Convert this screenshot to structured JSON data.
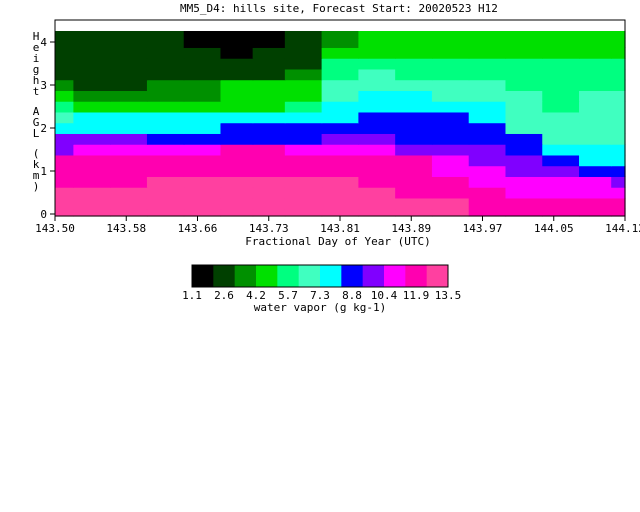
{
  "chart_data": {
    "type": "heatmap",
    "title": "MM5_D4: hills site,  Forecast Start: 20020523 H12",
    "xlabel": "Fractional Day of Year (UTC)",
    "ylabel": "Height AGL (km)",
    "xlim": [
      143.5,
      144.12
    ],
    "ylim": [
      0,
      4.2
    ],
    "x_ticks": [
      "143.50",
      "143.58",
      "143.66",
      "143.73",
      "143.81",
      "143.89",
      "143.97",
      "144.05",
      "144.12"
    ],
    "y_ticks": [
      "0",
      "1",
      "2",
      "3",
      "4"
    ],
    "grid": false,
    "colorbar": {
      "label": "water vapor (g kg-1)",
      "tick_labels": [
        "1.1",
        "2.6",
        "4.2",
        "5.7",
        "7.3",
        "8.8",
        "10.4",
        "11.9",
        "13.5"
      ],
      "levels": [
        1.1,
        1.9,
        2.6,
        3.4,
        4.2,
        5.0,
        5.7,
        6.5,
        7.3,
        8.1,
        8.8,
        9.6,
        10.4,
        11.2,
        11.9,
        12.7,
        13.5
      ],
      "colors": [
        "#000000",
        "#004000",
        "#009000",
        "#00e000",
        "#00ff80",
        "#40ffc0",
        "#00ffff",
        "#0000ff",
        "#8000ff",
        "#ff00ff",
        "#ff00b0",
        "#ff40a0"
      ]
    },
    "x": [
      143.5,
      143.54,
      143.58,
      143.62,
      143.66,
      143.7,
      143.73,
      143.77,
      143.81,
      143.85,
      143.89,
      143.93,
      143.97,
      144.01,
      144.05,
      144.09,
      144.12
    ],
    "y": [
      0,
      0.25,
      0.5,
      0.75,
      1.0,
      1.25,
      1.5,
      1.75,
      2.0,
      2.25,
      2.5,
      2.75,
      3.0,
      3.25,
      3.5,
      3.75,
      4.0,
      4.2
    ],
    "z": [
      [
        13.0,
        13.0,
        13.0,
        13.0,
        13.0,
        13.0,
        13.0,
        13.2,
        13.2,
        12.5,
        12.5,
        12.5,
        12.0,
        11.5,
        11.5,
        11.5,
        11.5
      ],
      [
        12.5,
        12.5,
        12.5,
        13.0,
        13.0,
        13.0,
        13.0,
        13.2,
        13.2,
        12.5,
        12.5,
        12.5,
        12.0,
        11.5,
        11.5,
        11.5,
        11.5
      ],
      [
        12.5,
        12.5,
        12.5,
        12.5,
        12.5,
        13.0,
        13.0,
        13.2,
        13.2,
        12.5,
        12.0,
        12.0,
        11.5,
        10.5,
        11.0,
        11.0,
        11.0
      ],
      [
        12.0,
        12.0,
        12.0,
        12.5,
        12.5,
        12.5,
        12.5,
        12.5,
        12.5,
        12.0,
        12.0,
        11.5,
        11.0,
        10.5,
        10.5,
        10.5,
        10.0
      ],
      [
        12.0,
        12.0,
        12.0,
        12.0,
        12.0,
        12.0,
        12.0,
        12.0,
        12.0,
        11.5,
        12.0,
        11.0,
        10.5,
        10.0,
        9.5,
        9.0,
        8.5
      ],
      [
        11.5,
        12.0,
        12.0,
        12.0,
        12.0,
        12.0,
        12.0,
        12.0,
        12.0,
        11.5,
        11.5,
        10.5,
        10.0,
        9.5,
        8.5,
        7.5,
        7.5
      ],
      [
        10.0,
        11.0,
        11.0,
        11.0,
        11.0,
        11.5,
        11.5,
        11.0,
        11.0,
        10.5,
        10.0,
        9.5,
        9.5,
        9.0,
        7.5,
        7.5,
        7.5
      ],
      [
        9.5,
        9.5,
        9.5,
        9.0,
        9.0,
        9.0,
        9.0,
        9.0,
        9.5,
        9.5,
        9.0,
        9.0,
        9.0,
        8.5,
        7.0,
        7.0,
        7.0
      ],
      [
        8.0,
        8.0,
        8.0,
        8.0,
        8.0,
        8.5,
        8.5,
        8.5,
        8.5,
        9.0,
        9.0,
        8.5,
        8.5,
        7.0,
        6.5,
        6.5,
        6.5
      ],
      [
        6.5,
        7.5,
        7.5,
        7.5,
        7.5,
        7.5,
        7.5,
        7.5,
        8.0,
        8.5,
        8.5,
        8.5,
        8.0,
        6.5,
        6.5,
        6.5,
        6.5
      ],
      [
        6.0,
        5.0,
        5.0,
        5.0,
        5.0,
        5.0,
        5.0,
        6.0,
        7.5,
        8.0,
        8.0,
        8.0,
        7.5,
        6.5,
        6.0,
        6.5,
        6.5
      ],
      [
        4.5,
        4.0,
        4.0,
        4.0,
        4.0,
        4.5,
        4.5,
        5.0,
        7.0,
        7.5,
        7.5,
        7.0,
        7.0,
        6.5,
        6.0,
        6.5,
        6.5
      ],
      [
        3.5,
        3.0,
        3.0,
        3.5,
        4.0,
        4.5,
        4.5,
        4.5,
        6.5,
        7.0,
        7.0,
        6.5,
        6.5,
        6.0,
        6.0,
        6.0,
        6.0
      ],
      [
        3.0,
        3.0,
        3.0,
        3.0,
        3.0,
        3.0,
        3.0,
        4.0,
        6.0,
        6.5,
        6.0,
        6.0,
        6.0,
        6.0,
        6.0,
        6.0,
        6.0
      ],
      [
        3.0,
        3.0,
        3.0,
        3.0,
        3.0,
        3.0,
        3.0,
        3.0,
        5.5,
        6.0,
        5.5,
        5.5,
        5.5,
        5.5,
        5.5,
        5.5,
        5.5
      ],
      [
        3.0,
        3.0,
        3.0,
        3.0,
        3.0,
        2.0,
        2.5,
        3.0,
        4.5,
        5.0,
        5.0,
        5.0,
        5.0,
        5.0,
        5.0,
        5.0,
        5.0
      ],
      [
        3.0,
        3.0,
        3.0,
        3.0,
        1.5,
        1.2,
        1.5,
        3.0,
        4.0,
        4.5,
        4.5,
        4.5,
        4.5,
        4.5,
        4.5,
        4.5,
        4.5
      ],
      [
        3.0,
        3.0,
        3.0,
        3.0,
        1.2,
        1.1,
        1.5,
        3.0,
        4.0,
        4.5,
        4.5,
        4.5,
        4.5,
        4.5,
        4.5,
        4.5,
        4.5
      ]
    ]
  }
}
